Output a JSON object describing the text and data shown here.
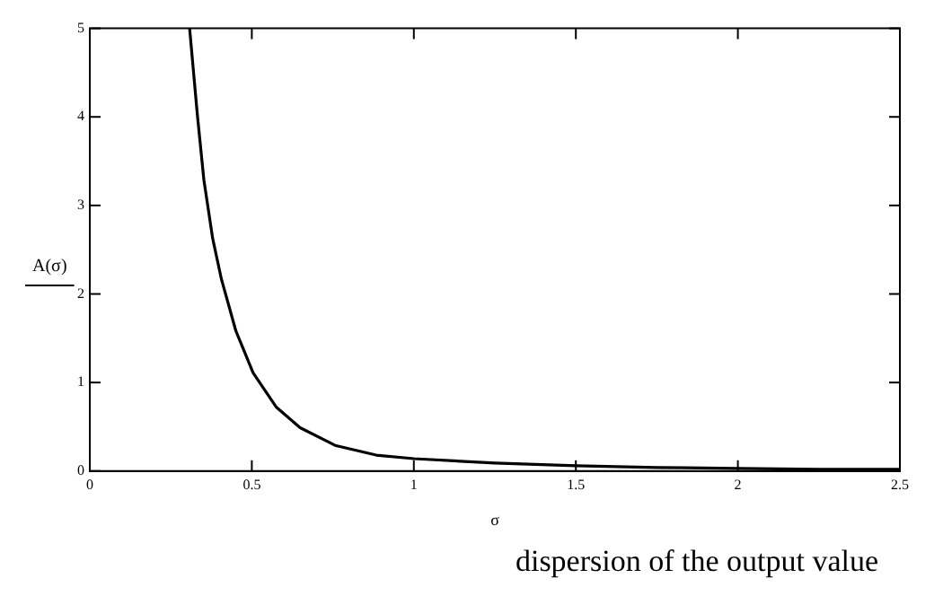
{
  "chart_data": {
    "type": "line",
    "xlabel": "σ",
    "ylabel": "A(σ)",
    "annotations": [
      "dispersion of the output value"
    ],
    "x": [
      0.308,
      0.332,
      0.352,
      0.379,
      0.406,
      0.451,
      0.504,
      0.576,
      0.649,
      0.757,
      0.884,
      1.0,
      1.25,
      1.5,
      1.75,
      2.0,
      2.25,
      2.5
    ],
    "series": [
      {
        "color": "#000000",
        "values": [
          5,
          4.02,
          3.29,
          2.63,
          2.17,
          1.58,
          1.11,
          0.72,
          0.49,
          0.29,
          0.18,
          0.14,
          0.09,
          0.06,
          0.04,
          0.03,
          0.02,
          0.02
        ]
      }
    ],
    "xlim": [
      0,
      2.5
    ],
    "ylim": [
      0,
      5
    ],
    "xticks": [
      0,
      0.5,
      1,
      1.5,
      2,
      2.5
    ],
    "yticks": [
      0,
      1,
      2,
      3,
      4,
      5
    ],
    "grid": false,
    "legend": false,
    "marker": "none",
    "line_style": "solid"
  }
}
